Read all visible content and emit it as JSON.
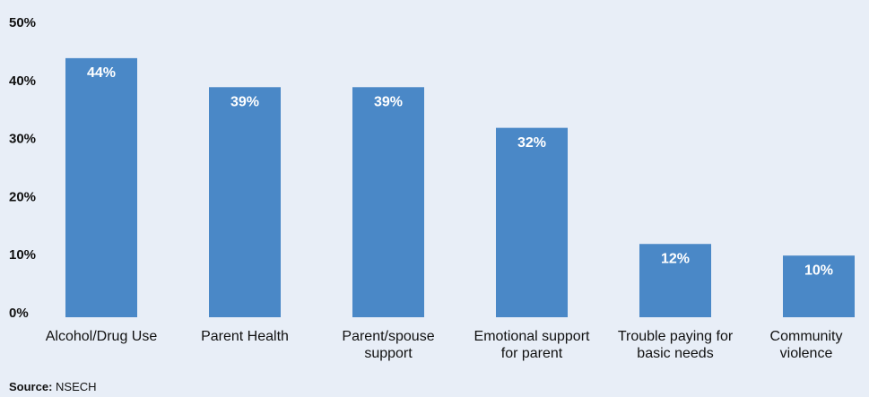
{
  "chart_data": {
    "type": "bar",
    "categories": [
      "Alcohol/Drug Use",
      "Parent Health",
      "Parent/spouse support",
      "Emotional support for parent",
      "Trouble paying for basic needs",
      "Community violence"
    ],
    "values": [
      44,
      39,
      39,
      32,
      12,
      10
    ],
    "value_labels": [
      "44%",
      "39%",
      "39%",
      "32%",
      "12%",
      "10%"
    ],
    "color": "#4a88c7",
    "ylim": [
      0,
      50
    ],
    "yticks": [
      {
        "value": 0,
        "label": "0%"
      },
      {
        "value": 10,
        "label": "10%"
      },
      {
        "value": 20,
        "label": "20%"
      },
      {
        "value": 30,
        "label": "30%"
      },
      {
        "value": 40,
        "label": "40%"
      },
      {
        "value": 50,
        "label": "50%"
      }
    ],
    "grid": false,
    "source_label": "Source:",
    "source": "NSECH"
  }
}
